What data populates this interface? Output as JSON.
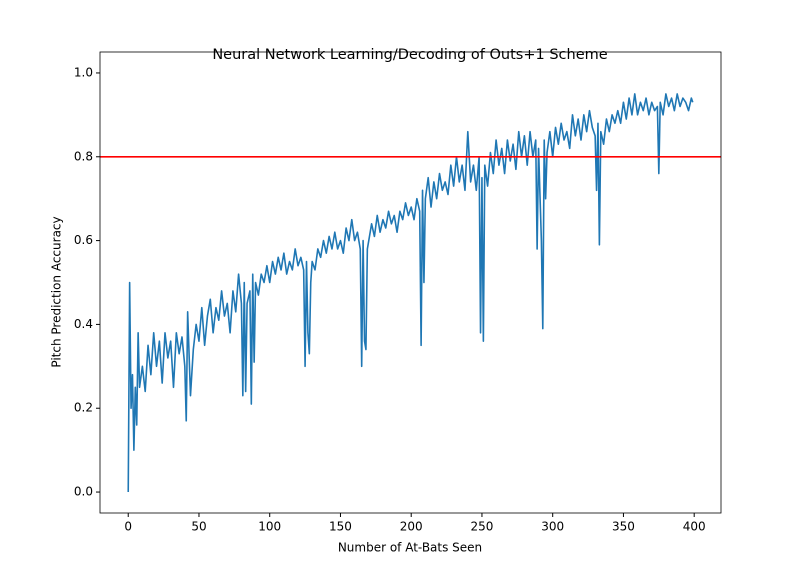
{
  "chart_data": {
    "type": "line",
    "title": "Neural Network Learning/Decoding of Outs+1 Scheme",
    "x_label": "Number of At-Bats Seen",
    "y_label": "Pitch Prediction Accuracy",
    "x": [
      0,
      1,
      2,
      3,
      4,
      5,
      6,
      7,
      8,
      10,
      12,
      14,
      16,
      18,
      20,
      22,
      24,
      26,
      28,
      30,
      32,
      34,
      36,
      38,
      40,
      41,
      42,
      44,
      46,
      48,
      50,
      52,
      54,
      56,
      58,
      60,
      62,
      64,
      66,
      68,
      70,
      72,
      74,
      76,
      78,
      80,
      81,
      82,
      83,
      84,
      86,
      87,
      88,
      89,
      90,
      92,
      94,
      96,
      98,
      100,
      102,
      104,
      106,
      108,
      110,
      112,
      114,
      116,
      118,
      120,
      122,
      124,
      125,
      126,
      127,
      128,
      129,
      130,
      132,
      134,
      136,
      138,
      140,
      142,
      144,
      146,
      148,
      150,
      152,
      154,
      156,
      158,
      160,
      162,
      164,
      165,
      166,
      167,
      168,
      169,
      170,
      172,
      174,
      176,
      178,
      180,
      182,
      184,
      186,
      188,
      190,
      192,
      194,
      196,
      198,
      200,
      202,
      204,
      206,
      207,
      208,
      209,
      210,
      212,
      214,
      216,
      218,
      220,
      222,
      224,
      226,
      228,
      230,
      232,
      234,
      236,
      238,
      240,
      242,
      244,
      246,
      248,
      249,
      250,
      251,
      252,
      254,
      256,
      258,
      260,
      262,
      264,
      266,
      268,
      270,
      272,
      274,
      276,
      278,
      280,
      282,
      284,
      286,
      288,
      289,
      290,
      292,
      293,
      294,
      295,
      296,
      298,
      300,
      302,
      304,
      306,
      308,
      310,
      312,
      314,
      316,
      318,
      320,
      322,
      324,
      326,
      328,
      330,
      331,
      332,
      333,
      334,
      336,
      338,
      340,
      342,
      344,
      346,
      348,
      350,
      352,
      354,
      356,
      358,
      360,
      362,
      364,
      366,
      368,
      370,
      372,
      374,
      375,
      376,
      378,
      380,
      382,
      384,
      386,
      388,
      390,
      392,
      394,
      396,
      398,
      399
    ],
    "series": [
      {
        "color": "#1f77b4",
        "values": [
          0.0,
          0.5,
          0.2,
          0.28,
          0.1,
          0.25,
          0.16,
          0.38,
          0.25,
          0.3,
          0.24,
          0.35,
          0.28,
          0.38,
          0.3,
          0.36,
          0.26,
          0.38,
          0.32,
          0.36,
          0.25,
          0.38,
          0.33,
          0.37,
          0.3,
          0.17,
          0.43,
          0.23,
          0.34,
          0.4,
          0.36,
          0.44,
          0.35,
          0.42,
          0.46,
          0.38,
          0.44,
          0.41,
          0.48,
          0.42,
          0.45,
          0.38,
          0.48,
          0.43,
          0.52,
          0.45,
          0.23,
          0.5,
          0.24,
          0.45,
          0.48,
          0.21,
          0.52,
          0.31,
          0.5,
          0.47,
          0.52,
          0.5,
          0.54,
          0.5,
          0.55,
          0.52,
          0.56,
          0.53,
          0.57,
          0.52,
          0.55,
          0.53,
          0.58,
          0.54,
          0.56,
          0.53,
          0.3,
          0.55,
          0.38,
          0.33,
          0.5,
          0.55,
          0.53,
          0.58,
          0.56,
          0.6,
          0.57,
          0.61,
          0.58,
          0.62,
          0.58,
          0.6,
          0.57,
          0.63,
          0.6,
          0.65,
          0.6,
          0.62,
          0.58,
          0.3,
          0.6,
          0.36,
          0.34,
          0.58,
          0.6,
          0.64,
          0.61,
          0.66,
          0.62,
          0.65,
          0.63,
          0.67,
          0.64,
          0.66,
          0.62,
          0.67,
          0.65,
          0.69,
          0.66,
          0.68,
          0.65,
          0.7,
          0.67,
          0.35,
          0.72,
          0.5,
          0.7,
          0.75,
          0.68,
          0.74,
          0.7,
          0.76,
          0.72,
          0.74,
          0.71,
          0.78,
          0.73,
          0.8,
          0.74,
          0.78,
          0.72,
          0.86,
          0.74,
          0.78,
          0.72,
          0.8,
          0.38,
          0.75,
          0.36,
          0.78,
          0.73,
          0.81,
          0.76,
          0.84,
          0.78,
          0.82,
          0.76,
          0.84,
          0.79,
          0.83,
          0.77,
          0.86,
          0.8,
          0.85,
          0.78,
          0.86,
          0.8,
          0.84,
          0.58,
          0.82,
          0.6,
          0.39,
          0.84,
          0.7,
          0.81,
          0.86,
          0.8,
          0.87,
          0.83,
          0.88,
          0.84,
          0.86,
          0.82,
          0.9,
          0.85,
          0.89,
          0.84,
          0.9,
          0.86,
          0.91,
          0.87,
          0.85,
          0.72,
          0.88,
          0.59,
          0.86,
          0.83,
          0.89,
          0.86,
          0.9,
          0.88,
          0.91,
          0.88,
          0.93,
          0.89,
          0.94,
          0.9,
          0.95,
          0.9,
          0.93,
          0.91,
          0.94,
          0.9,
          0.93,
          0.91,
          0.92,
          0.76,
          0.93,
          0.9,
          0.95,
          0.92,
          0.94,
          0.91,
          0.95,
          0.92,
          0.94,
          0.93,
          0.91,
          0.94,
          0.93
        ]
      }
    ],
    "reference_line": 0.8,
    "reference_color": "#ff0000",
    "xlim": [
      -19.95,
      418.95
    ],
    "xticks": [
      0,
      50,
      100,
      150,
      200,
      250,
      300,
      350,
      400
    ],
    "ylim": [
      -0.05,
      1.05
    ],
    "yticks": [
      {
        "value": 0,
        "label": "0.0"
      },
      0.2,
      0.4,
      0.6,
      0.8,
      {
        "value": 1,
        "label": "1.0"
      }
    ]
  }
}
